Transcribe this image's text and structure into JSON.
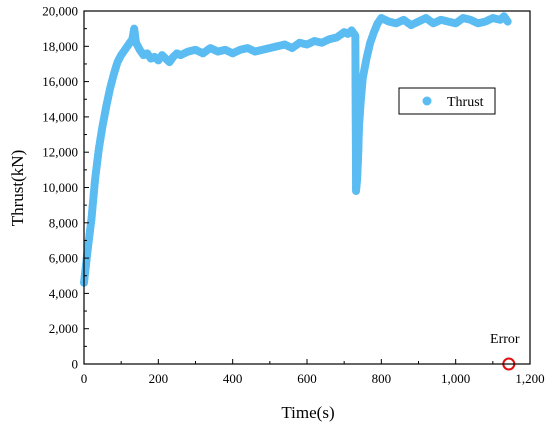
{
  "chart_data": {
    "type": "scatter",
    "xlabel": "Time(s)",
    "ylabel": "Thrust(kN)",
    "xlim": [
      0,
      1200
    ],
    "ylim": [
      0,
      20000
    ],
    "x_ticks": [
      0,
      200,
      400,
      600,
      800,
      1000,
      1200
    ],
    "x_tick_labels": [
      "0",
      "200",
      "400",
      "600",
      "800",
      "1,000",
      "1,200"
    ],
    "y_ticks": [
      0,
      2000,
      4000,
      6000,
      8000,
      10000,
      12000,
      14000,
      16000,
      18000,
      20000
    ],
    "y_tick_labels": [
      "0",
      "2,000",
      "4,000",
      "6,000",
      "8,000",
      "10,000",
      "12,000",
      "14,000",
      "16,000",
      "18,000",
      "20,000"
    ],
    "grid": false,
    "legend": {
      "position": "right-middle",
      "entries": [
        {
          "label": "Thrust",
          "color": "#5bbcf2",
          "marker": "circle"
        }
      ]
    },
    "series": [
      {
        "name": "Thrust",
        "color": "#5bbcf2",
        "x": [
          0,
          10,
          20,
          30,
          40,
          50,
          60,
          70,
          80,
          90,
          100,
          110,
          120,
          130,
          135,
          140,
          150,
          160,
          170,
          180,
          190,
          200,
          210,
          220,
          230,
          240,
          250,
          260,
          280,
          300,
          320,
          340,
          360,
          380,
          400,
          420,
          440,
          460,
          480,
          500,
          520,
          540,
          560,
          580,
          600,
          620,
          640,
          660,
          680,
          700,
          710,
          720,
          730,
          732,
          735,
          738,
          740,
          745,
          750,
          760,
          770,
          780,
          790,
          800,
          820,
          840,
          860,
          880,
          900,
          920,
          940,
          960,
          980,
          1000,
          1020,
          1040,
          1060,
          1080,
          1100,
          1120,
          1130,
          1140
        ],
        "y": [
          4600,
          6500,
          8200,
          10500,
          12200,
          13500,
          14600,
          15600,
          16400,
          17100,
          17500,
          17800,
          18100,
          18400,
          19000,
          18200,
          17800,
          17500,
          17600,
          17300,
          17400,
          17200,
          17500,
          17300,
          17100,
          17400,
          17600,
          17500,
          17700,
          17800,
          17600,
          17900,
          17700,
          17800,
          17600,
          17800,
          17900,
          17700,
          17800,
          17900,
          18000,
          18100,
          17900,
          18200,
          18100,
          18300,
          18200,
          18400,
          18500,
          18800,
          18700,
          18900,
          18600,
          9800,
          10500,
          12000,
          13500,
          15000,
          16200,
          17300,
          18200,
          18800,
          19300,
          19600,
          19400,
          19300,
          19500,
          19200,
          19400,
          19600,
          19300,
          19500,
          19400,
          19300,
          19600,
          19500,
          19300,
          19400,
          19600,
          19500,
          19700,
          19400
        ]
      }
    ],
    "annotations": [
      {
        "text": "Error",
        "x": 1143,
        "y": 0,
        "marker": "open-circle",
        "color": "#e01010"
      }
    ]
  }
}
